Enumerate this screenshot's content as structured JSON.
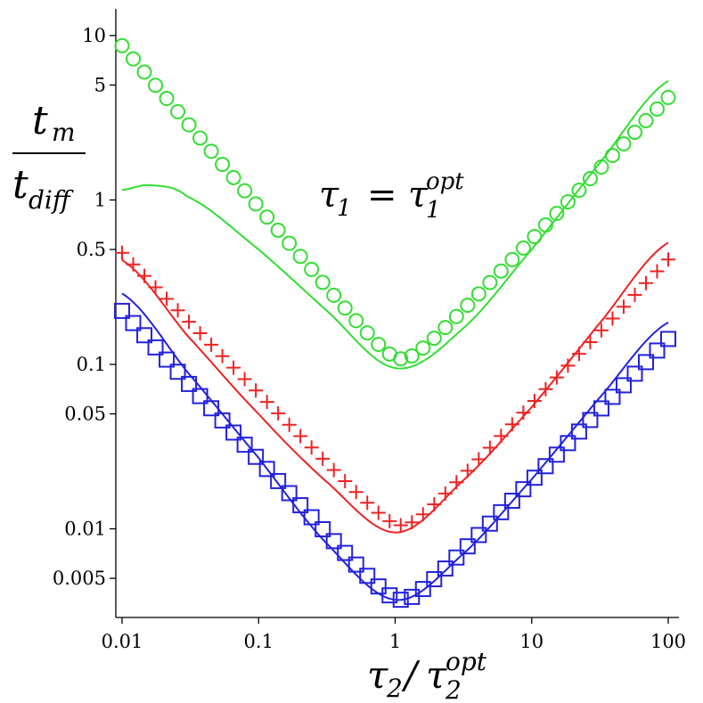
{
  "chart_data": {
    "type": "scatter",
    "title": "",
    "xscale": "log",
    "yscale": "log",
    "xlim": [
      0.01,
      100
    ],
    "ylim": [
      0.003,
      12.5
    ],
    "x_ticks": [
      {
        "value": 0.01,
        "label": "0.01"
      },
      {
        "value": 0.1,
        "label": "0.1"
      },
      {
        "value": 1,
        "label": "1"
      },
      {
        "value": 10,
        "label": "10"
      },
      {
        "value": 100,
        "label": "100"
      }
    ],
    "y_ticks": [
      {
        "value": 0.005,
        "label": "0.005"
      },
      {
        "value": 0.01,
        "label": "0.01"
      },
      {
        "value": 0.05,
        "label": "0.05"
      },
      {
        "value": 0.1,
        "label": "0.1"
      },
      {
        "value": 0.5,
        "label": "0.5"
      },
      {
        "value": 1,
        "label": "1"
      },
      {
        "value": 5,
        "label": "5"
      },
      {
        "value": 10,
        "label": "10"
      }
    ],
    "xlabel": {
      "base": "τ",
      "sub": "2",
      "slash": "/",
      "base2": "τ",
      "sub2": "2",
      "sup2": "opt"
    },
    "ylabel": {
      "num": "t",
      "num_sub": "m",
      "den": "t",
      "den_sub": "diff"
    },
    "annotation": {
      "lhs": "τ",
      "lhs_sub": "1",
      "eq": "=",
      "rhs": "τ",
      "rhs_sub": "1",
      "rhs_sup": "opt"
    },
    "series": [
      {
        "name": "green-markers",
        "kind": "markers",
        "marker": "circle",
        "color": "#33dd33",
        "x": [
          0.01,
          100
        ],
        "y": [
          11.3,
          5.3
        ],
        "min_x": 1.12,
        "min_y": 0.108,
        "n": 50
      },
      {
        "name": "green-line",
        "kind": "line",
        "color": "#33dd33",
        "x": [
          0.01,
          0.016,
          0.03,
          0.1,
          0.3,
          1,
          3,
          10,
          30,
          100
        ],
        "y": [
          1.15,
          1.23,
          1.05,
          0.5,
          0.22,
          0.095,
          0.16,
          0.5,
          1.6,
          5.3
        ]
      },
      {
        "name": "red-markers",
        "kind": "markers",
        "marker": "plus",
        "color": "#ee2222",
        "x": [
          0.01,
          100
        ],
        "y": [
          0.6,
          0.55
        ],
        "min_x": 1.12,
        "min_y": 0.0105,
        "n": 50
      },
      {
        "name": "red-line",
        "kind": "line",
        "color": "#ee2222",
        "x": [
          0.01,
          0.03,
          0.1,
          0.3,
          1,
          3,
          10,
          30,
          100
        ],
        "y": [
          0.43,
          0.15,
          0.05,
          0.02,
          0.0095,
          0.019,
          0.055,
          0.17,
          0.55
        ]
      },
      {
        "name": "blue-markers",
        "kind": "markers",
        "marker": "square",
        "color": "#2222dd",
        "x": [
          0.01,
          100
        ],
        "y": [
          0.27,
          0.18
        ],
        "min_x": 1.12,
        "min_y": 0.0037,
        "n": 50
      },
      {
        "name": "blue-line",
        "kind": "line",
        "color": "#2222dd",
        "x": [
          0.01,
          0.03,
          0.1,
          0.3,
          1,
          3,
          10,
          30,
          100
        ],
        "y": [
          0.27,
          0.09,
          0.027,
          0.0085,
          0.0037,
          0.0068,
          0.02,
          0.06,
          0.18
        ]
      }
    ]
  }
}
